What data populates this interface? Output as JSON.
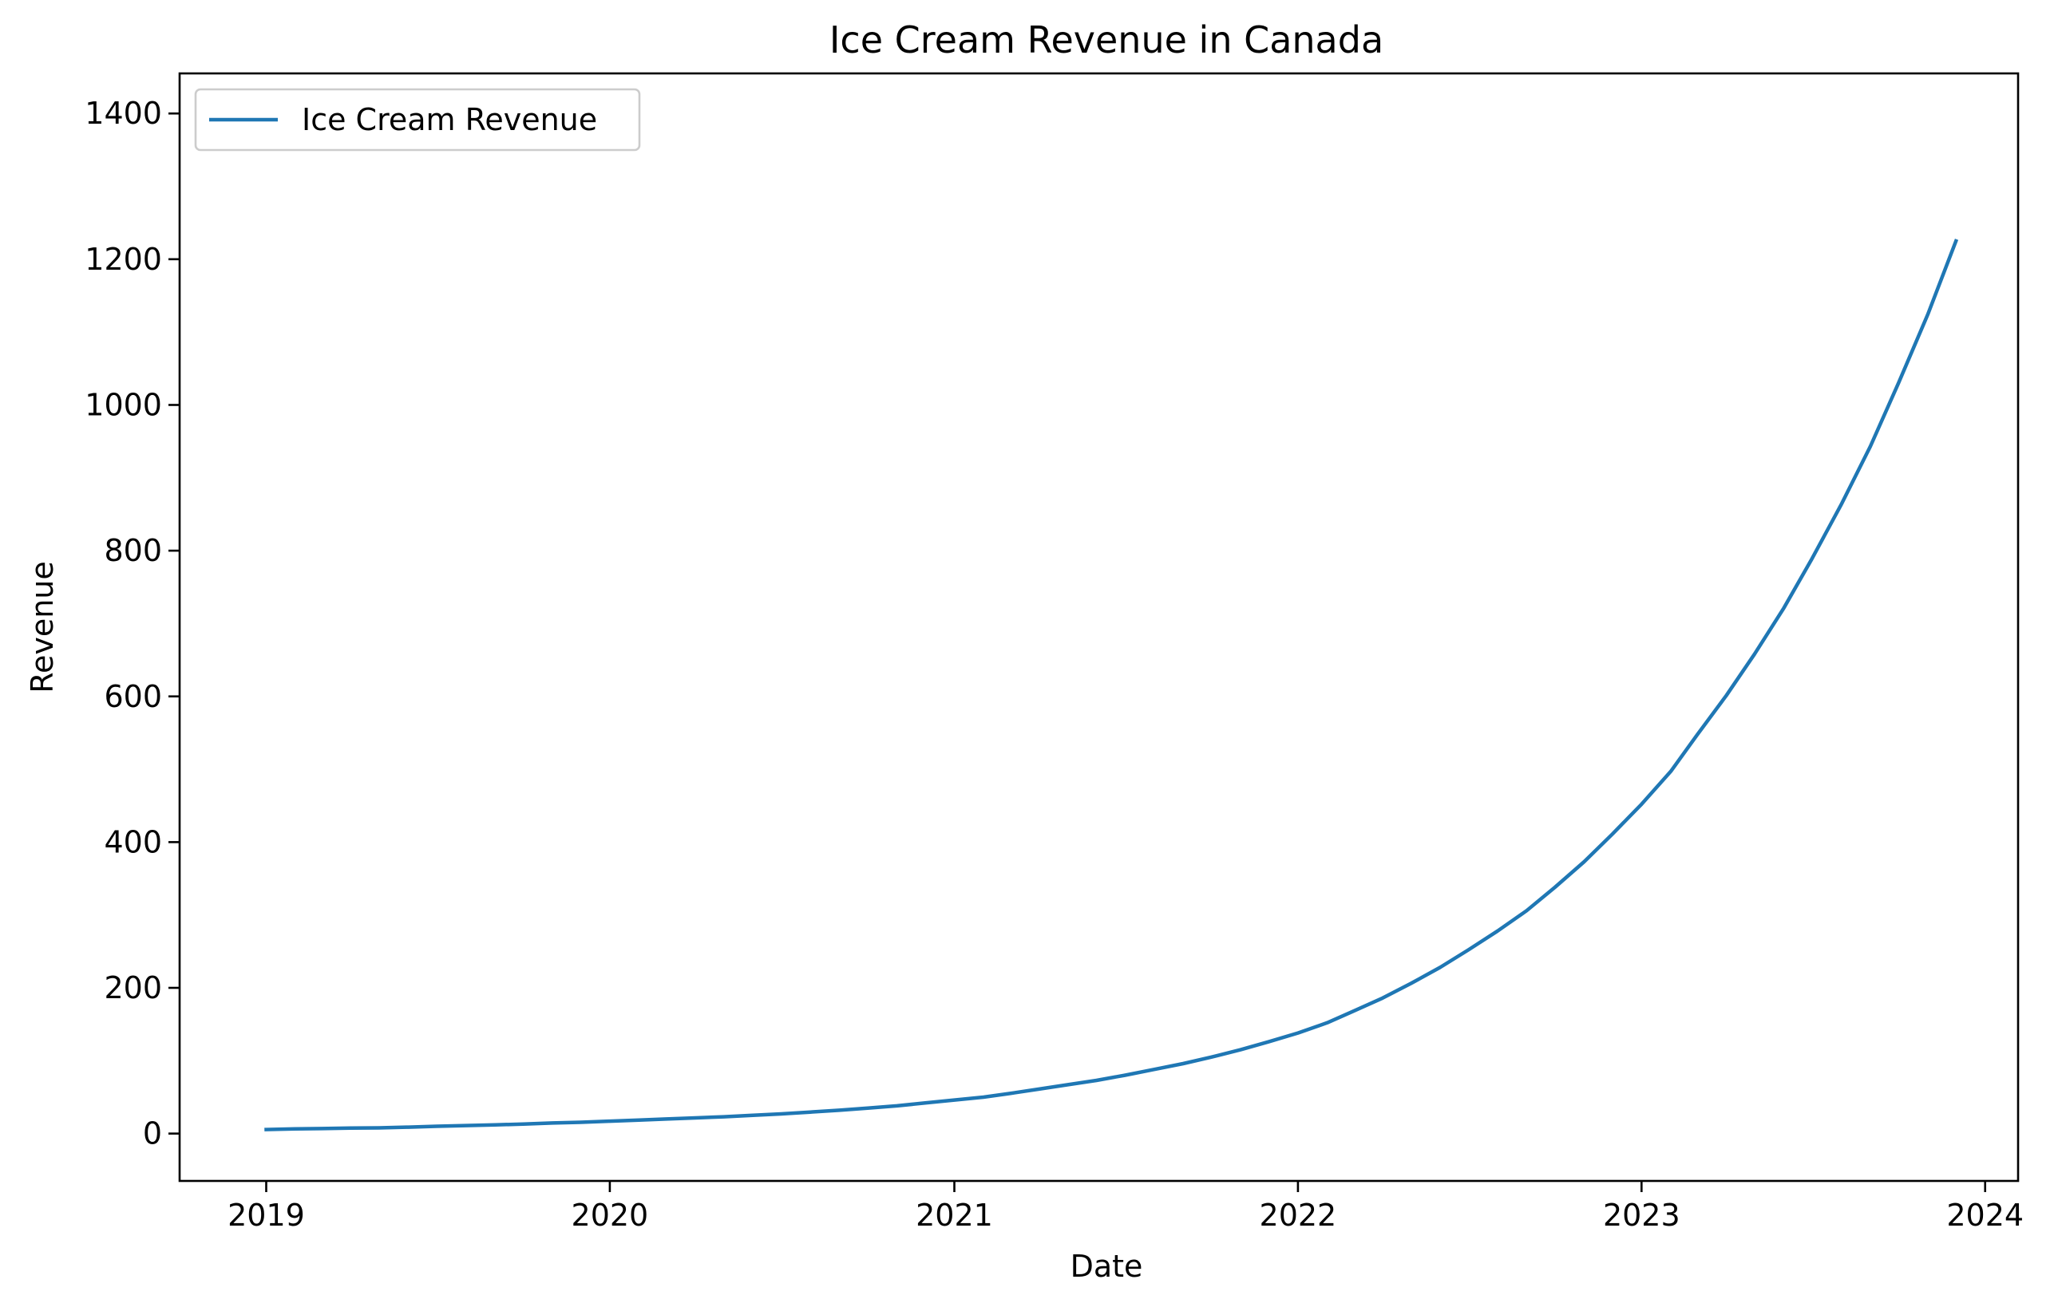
{
  "chart_data": {
    "type": "line",
    "title": "Ice Cream Revenue in Canada",
    "xlabel": "Date",
    "ylabel": "Revenue",
    "xlim": [
      "2018-10-01",
      "2024-02-05"
    ],
    "ylim": [
      -65,
      1455
    ],
    "xticks": [
      {
        "label": "2019",
        "date": "2019-01-01"
      },
      {
        "label": "2020",
        "date": "2020-01-01"
      },
      {
        "label": "2021",
        "date": "2021-01-01"
      },
      {
        "label": "2022",
        "date": "2022-01-01"
      },
      {
        "label": "2023",
        "date": "2023-01-01"
      },
      {
        "label": "2024",
        "date": "2024-01-01"
      }
    ],
    "yticks": [
      0,
      200,
      400,
      600,
      800,
      1000,
      1200,
      1400
    ],
    "grid": false,
    "legend_position": "top-left",
    "colors": {
      "series": "#1f77b4"
    },
    "series": [
      {
        "name": "Ice Cream Revenue",
        "x": [
          "2019-01-01",
          "2019-02-01",
          "2019-03-01",
          "2019-04-01",
          "2019-05-01",
          "2019-06-01",
          "2019-07-01",
          "2019-08-01",
          "2019-09-01",
          "2019-10-01",
          "2019-11-01",
          "2019-12-01",
          "2020-01-01",
          "2020-02-01",
          "2020-03-01",
          "2020-04-01",
          "2020-05-01",
          "2020-06-01",
          "2020-07-01",
          "2020-08-01",
          "2020-09-01",
          "2020-10-01",
          "2020-11-01",
          "2020-12-01",
          "2021-01-01",
          "2021-02-01",
          "2021-03-01",
          "2021-04-01",
          "2021-05-01",
          "2021-06-01",
          "2021-07-01",
          "2021-08-01",
          "2021-09-01",
          "2021-10-01",
          "2021-11-01",
          "2021-12-01",
          "2022-01-01",
          "2022-02-01",
          "2022-03-01",
          "2022-04-01",
          "2022-05-01",
          "2022-06-01",
          "2022-07-01",
          "2022-08-01",
          "2022-09-01",
          "2022-10-01",
          "2022-11-01",
          "2022-12-01",
          "2023-01-01",
          "2023-02-01",
          "2023-03-01",
          "2023-04-01",
          "2023-05-01",
          "2023-06-01",
          "2023-07-01",
          "2023-08-01",
          "2023-09-01",
          "2023-10-01",
          "2023-11-01",
          "2023-12-01"
        ],
        "values": [
          5.5,
          6.5,
          6.8,
          7.5,
          7.8,
          8.8,
          10,
          11,
          12,
          13,
          14.5,
          15.5,
          17,
          18.5,
          20,
          21.5,
          23,
          25,
          27,
          29.5,
          32,
          35,
          38,
          42,
          46,
          50,
          55,
          61,
          67,
          73,
          80,
          88,
          96,
          105,
          115,
          126,
          138,
          152,
          168,
          186,
          206,
          228,
          252,
          278,
          306,
          338,
          373,
          411,
          452,
          497,
          547,
          601,
          658,
          721,
          789,
          863,
          943,
          1030,
          1124,
          1225
        ]
      }
    ]
  }
}
